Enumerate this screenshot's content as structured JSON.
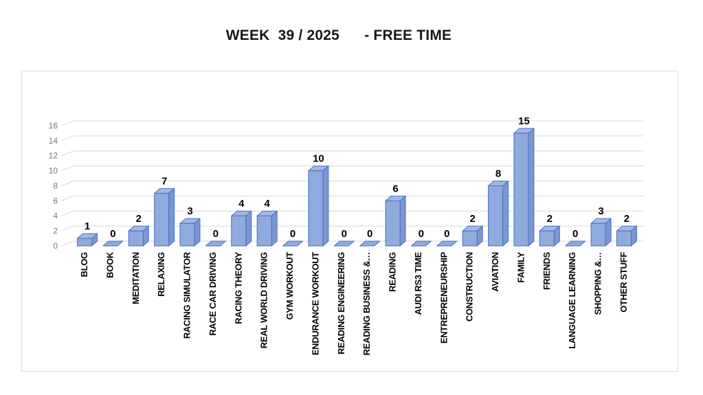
{
  "page": {
    "title": "WEEK  39 / 2025      - FREE TIME"
  },
  "chart_data": {
    "type": "bar",
    "style": "3d-clustered-column",
    "title": "WEEK  39 / 2025      - FREE TIME",
    "categories": [
      "BLOG",
      "BOOK",
      "MEDITATION",
      "RELAXING",
      "RACING SIMULATOR",
      "RACE CAR DRIVING",
      "RACING THEORY",
      "REAL WORLD DRIVING",
      "GYM WORKOUT",
      "ENDURANCE WORKOUT",
      "READING ENGINEERING",
      "READING BUSINESS &…",
      "READING",
      "AUDI RS3 TIME",
      "ENTREPRENEURSHIP",
      "CONSTRUCTION",
      "AVIATION",
      "FAMILY",
      "FRIENDS",
      "LANGUAGE LEARNING",
      "SHOPPING &…",
      "OTHER STUFF"
    ],
    "values": [
      1,
      0,
      2,
      7,
      3,
      0,
      4,
      4,
      0,
      10,
      0,
      0,
      6,
      0,
      0,
      2,
      8,
      15,
      2,
      0,
      3,
      2
    ],
    "data_labels": true,
    "xlabel": "",
    "ylabel": "",
    "ylim": [
      0,
      16
    ],
    "yticks": [
      0,
      2,
      4,
      6,
      8,
      10,
      12,
      14,
      16
    ],
    "grid": true,
    "legend": "none",
    "colors": {
      "bar_front": "#8faadc",
      "bar_top": "#a4b7e4",
      "bar_side": "#7b96d2",
      "bar_border": "#4472c4",
      "gridline": "#d9d9d9",
      "axis_label": "#767676",
      "category_label": "#000000",
      "data_label": "#000000",
      "chart_border": "#dcdcdc",
      "background": "#ffffff"
    }
  }
}
